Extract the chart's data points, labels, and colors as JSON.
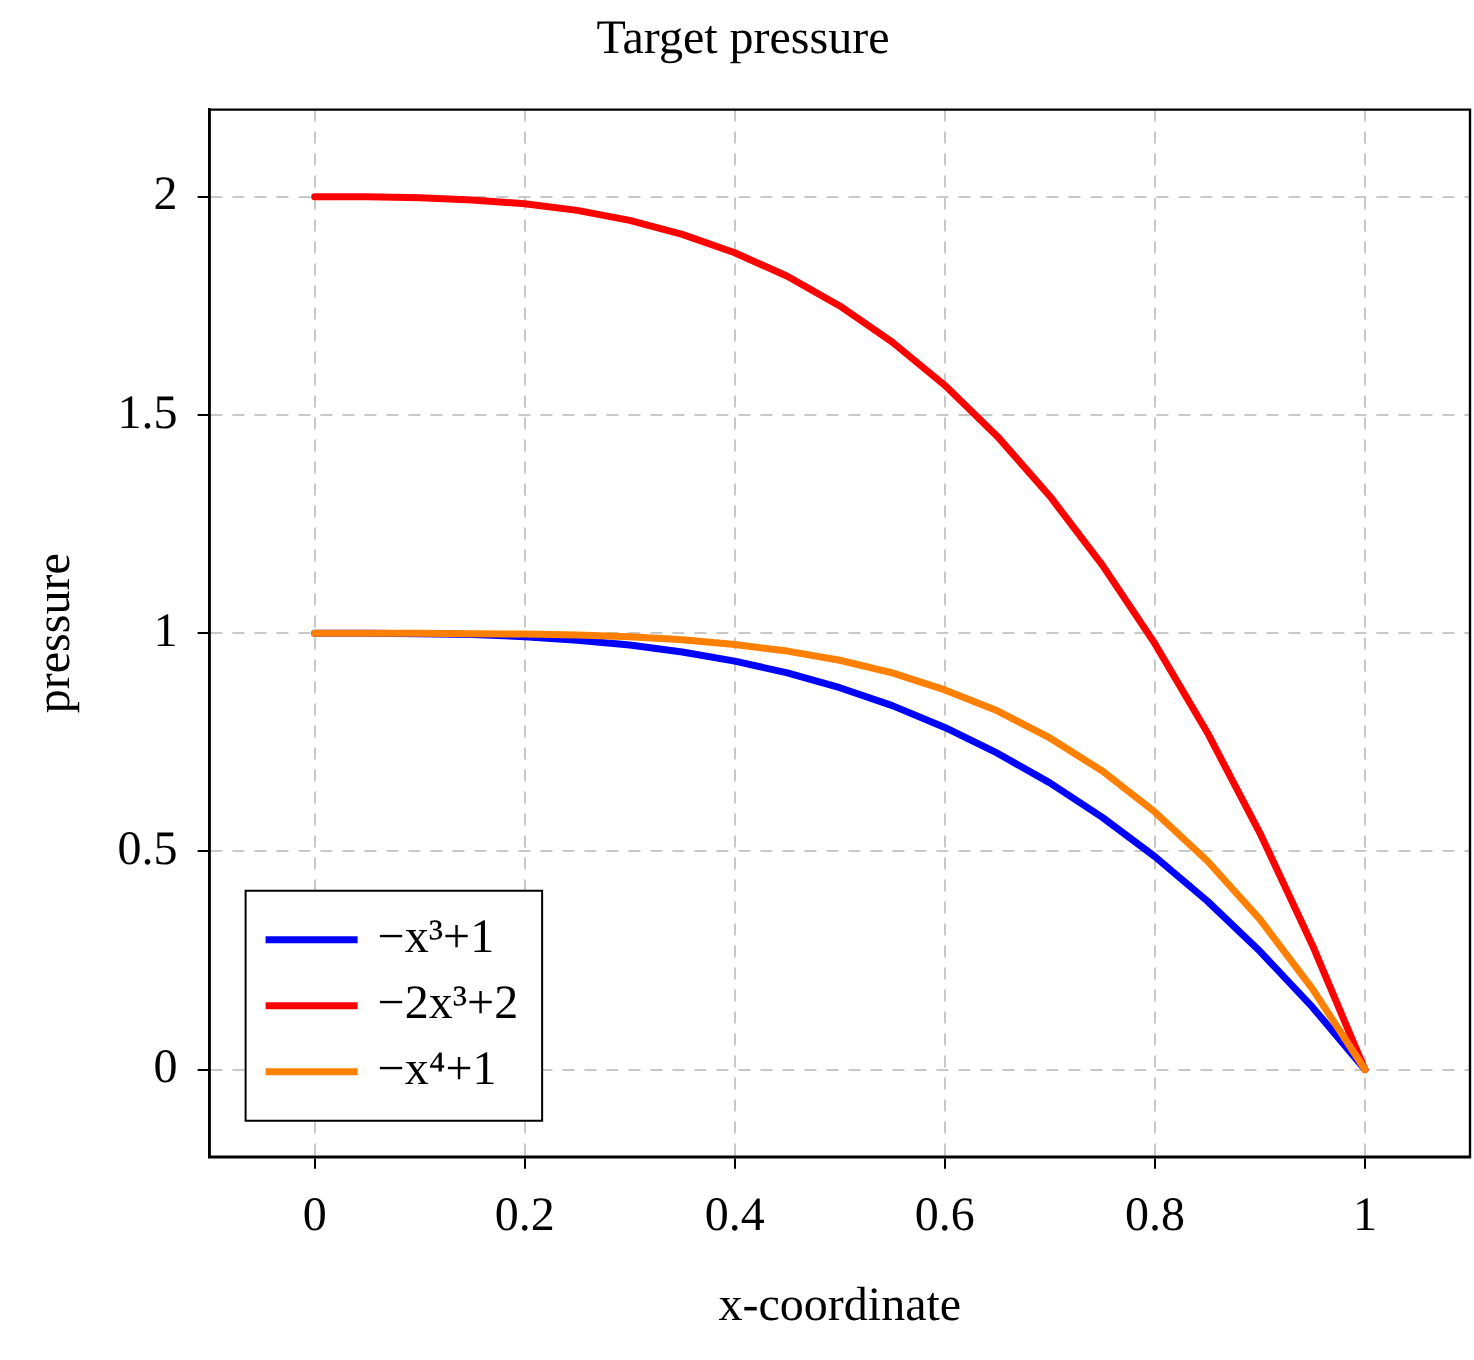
{
  "chart_data": {
    "type": "line",
    "title": "Target pressure",
    "xlabel": "x-coordinate",
    "ylabel": "pressure",
    "x": [
      0,
      0.05,
      0.1,
      0.15,
      0.2,
      0.25,
      0.3,
      0.35,
      0.4,
      0.45,
      0.5,
      0.55,
      0.6,
      0.65,
      0.7,
      0.75,
      0.8,
      0.85,
      0.9,
      0.95,
      1
    ],
    "series": [
      {
        "name": "−x³+1",
        "color": "#0000ff",
        "values": [
          1,
          1,
          0.999,
          0.997,
          0.992,
          0.984,
          0.973,
          0.957,
          0.936,
          0.909,
          0.875,
          0.834,
          0.784,
          0.725,
          0.657,
          0.578,
          0.488,
          0.386,
          0.271,
          0.143,
          0
        ]
      },
      {
        "name": "−2x³+2",
        "color": "#ff0000",
        "values": [
          2,
          2,
          1.998,
          1.993,
          1.984,
          1.969,
          1.946,
          1.914,
          1.872,
          1.818,
          1.75,
          1.667,
          1.568,
          1.451,
          1.314,
          1.156,
          0.976,
          0.772,
          0.542,
          0.285,
          0
        ]
      },
      {
        "name": "−x⁴+1",
        "color": "#ff8000",
        "values": [
          1,
          1,
          1,
          0.999,
          0.998,
          0.996,
          0.992,
          0.985,
          0.974,
          0.959,
          0.938,
          0.909,
          0.87,
          0.822,
          0.76,
          0.684,
          0.59,
          0.478,
          0.344,
          0.185,
          0
        ]
      }
    ],
    "xlim": [
      -0.1,
      1.1
    ],
    "ylim": [
      -0.2,
      2.2
    ],
    "xticks": [
      0,
      0.2,
      0.4,
      0.6,
      0.8,
      1
    ],
    "yticks": [
      0,
      0.5,
      1,
      1.5,
      2
    ],
    "grid": true,
    "legend": "bottom left",
    "marker": "none",
    "line_style": "solid"
  }
}
